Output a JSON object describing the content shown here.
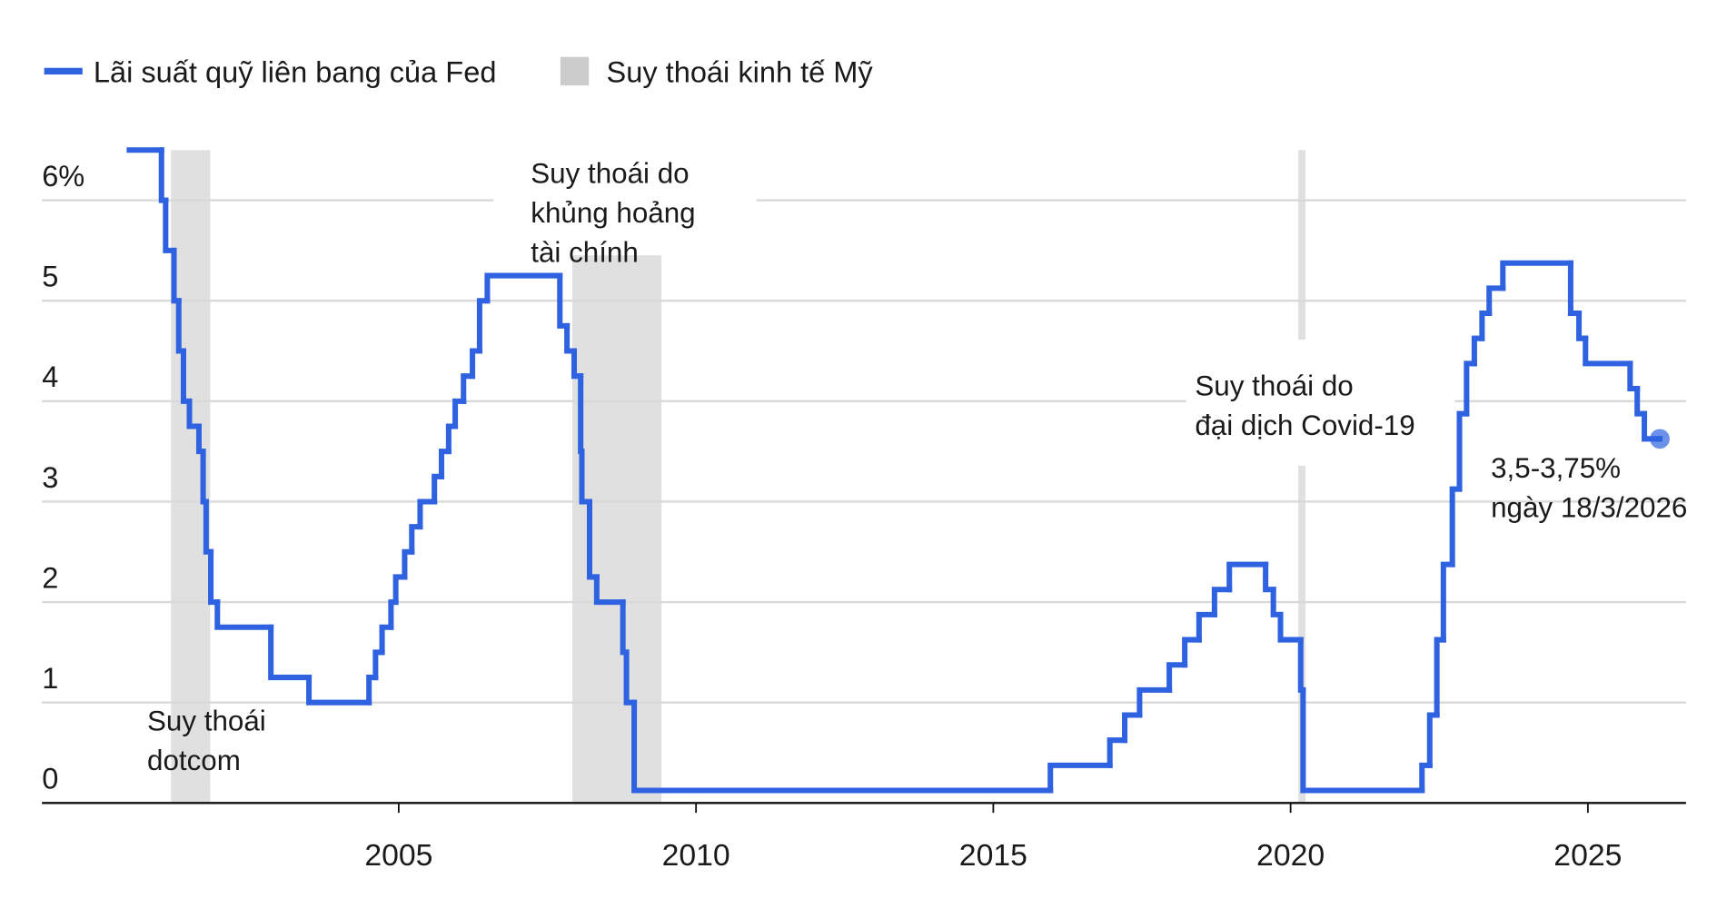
{
  "chart_data": {
    "type": "step-line",
    "legend": {
      "line": "Lãi suất quỹ liên bang của Fed",
      "band": "Suy thoái kinh tế Mỹ"
    },
    "x": [
      2000.47,
      2001.01,
      2001.08,
      2001.22,
      2001.3,
      2001.38,
      2001.48,
      2001.64,
      2001.71,
      2001.76,
      2001.84,
      2001.95,
      2002.85,
      2003.49,
      2004.5,
      2004.61,
      2004.72,
      2004.87,
      2004.95,
      2005.1,
      2005.22,
      2005.36,
      2005.6,
      2005.72,
      2005.84,
      2005.95,
      2006.09,
      2006.24,
      2006.36,
      2006.49,
      2007.71,
      2007.83,
      2007.95,
      2008.06,
      2008.08,
      2008.21,
      2008.33,
      2008.77,
      2008.83,
      2008.96,
      2015.96,
      2016.96,
      2017.21,
      2017.46,
      2017.96,
      2018.22,
      2018.46,
      2018.72,
      2018.97,
      2019.58,
      2019.71,
      2019.83,
      2020.17,
      2020.21,
      2022.21,
      2022.34,
      2022.46,
      2022.57,
      2022.72,
      2022.84,
      2022.96,
      2023.09,
      2023.22,
      2023.34,
      2023.57,
      2024.71,
      2024.85,
      2024.96,
      2025.71,
      2025.83,
      2025.95,
      2026.21
    ],
    "series": [
      {
        "name": "Lãi suất quỹ liên bang của Fed",
        "color": "#2e62e0",
        "values": [
          6.5,
          6.0,
          5.5,
          5.0,
          4.5,
          4.0,
          3.75,
          3.5,
          3.0,
          2.5,
          2.0,
          1.75,
          1.25,
          1.0,
          1.25,
          1.5,
          1.75,
          2.0,
          2.25,
          2.5,
          2.75,
          3.0,
          3.25,
          3.5,
          3.75,
          4.0,
          4.25,
          4.5,
          5.0,
          5.25,
          4.75,
          4.5,
          4.25,
          3.5,
          3.0,
          2.25,
          2.0,
          1.5,
          1.0,
          0.125,
          0.375,
          0.625,
          0.875,
          1.125,
          1.375,
          1.625,
          1.875,
          2.125,
          2.375,
          2.125,
          1.875,
          1.625,
          1.125,
          0.125,
          0.375,
          0.875,
          1.625,
          2.375,
          3.125,
          3.875,
          4.375,
          4.625,
          4.875,
          5.125,
          5.375,
          4.875,
          4.625,
          4.375,
          4.125,
          3.875,
          3.625,
          3.625
        ]
      }
    ],
    "recessions": [
      [
        2001.17,
        2001.83
      ],
      [
        2007.92,
        2009.42
      ],
      [
        2020.13,
        2020.25
      ]
    ],
    "band_color": "#e0e0e0",
    "annotations": [
      [
        "Suy thoái",
        "dotcom"
      ],
      [
        "Suy thoái do",
        "khủng hoảng",
        "tài chính"
      ],
      [
        "Suy thoái do",
        "đại dịch Covid-19"
      ],
      [
        "3,5-3,75%",
        "ngày 18/3/2026"
      ]
    ],
    "xlim": [
      1999,
      2026.65
    ],
    "xticks": [
      2005,
      2010,
      2015,
      2020,
      2025
    ],
    "ylim": [
      0,
      6.5
    ],
    "yticks": [
      0,
      1,
      2,
      3,
      4,
      5,
      {
        "value": 6,
        "label": "6%"
      }
    ],
    "grid": true
  }
}
